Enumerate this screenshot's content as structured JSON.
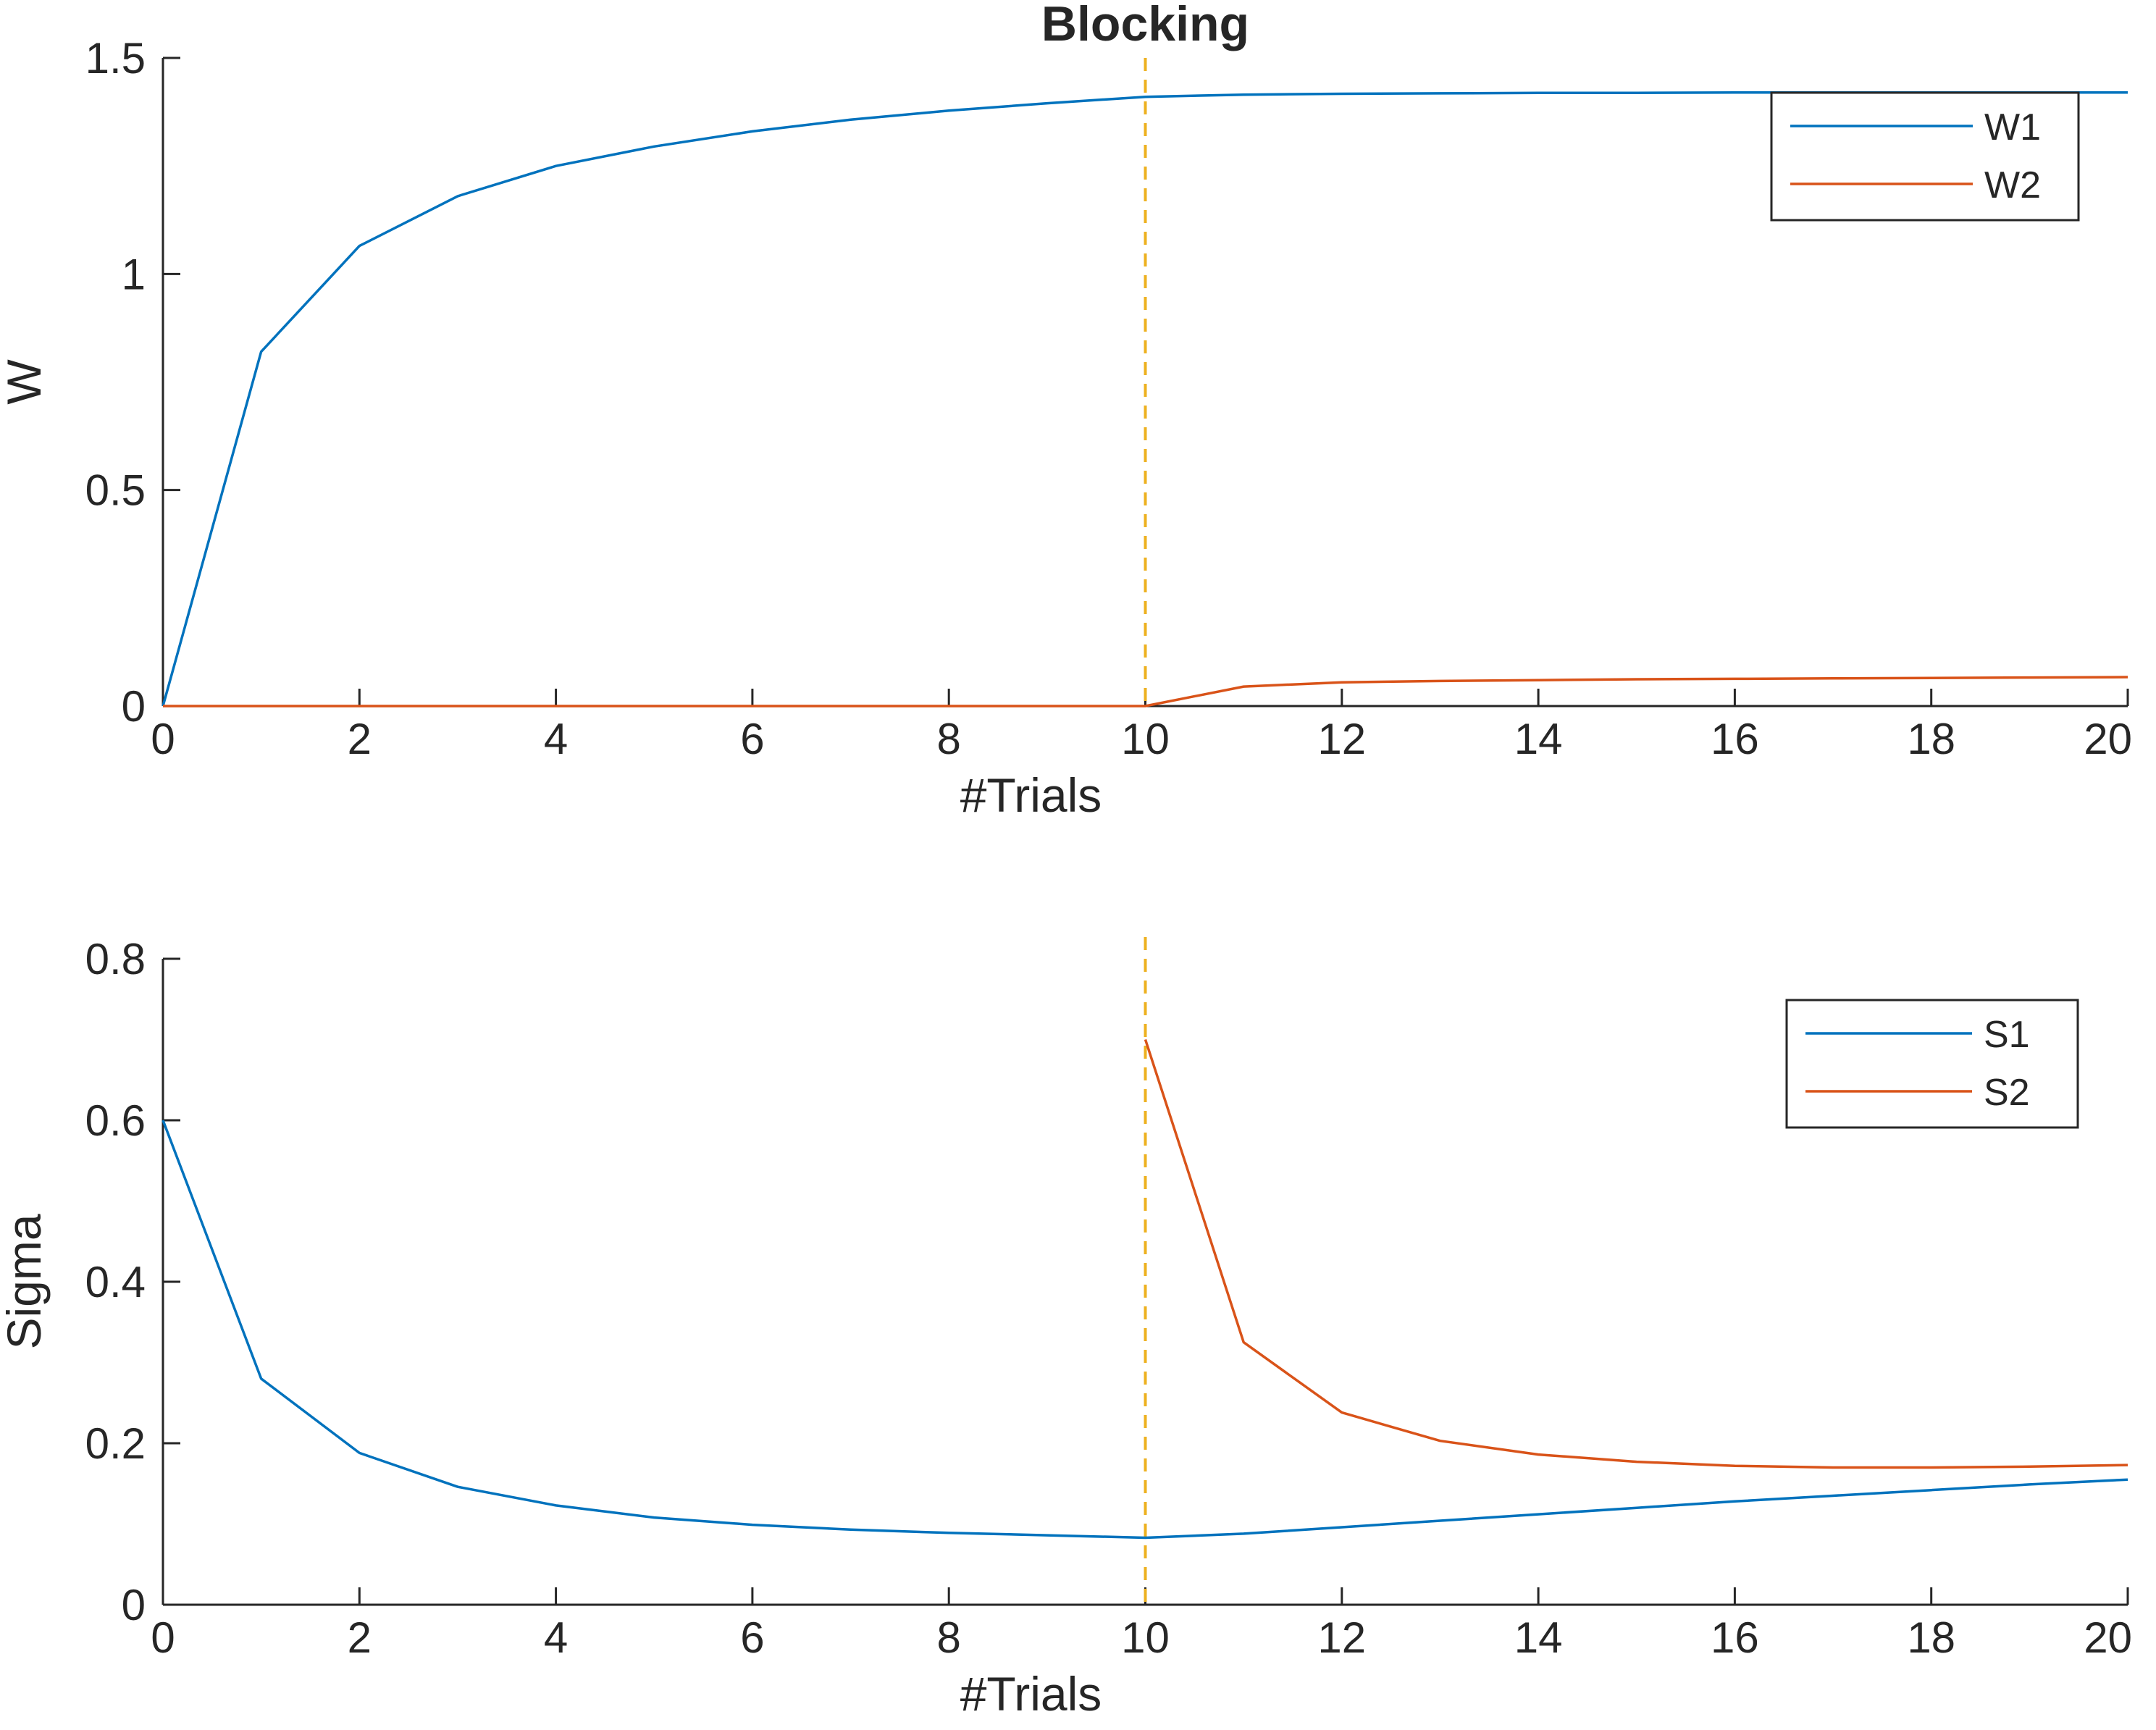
{
  "title": "Blocking",
  "colors": {
    "series1": "#0072BD",
    "series2": "#D95319",
    "marker_line": "#EDB120",
    "axis": "#262626"
  },
  "chart_data": [
    {
      "type": "line",
      "title": "Blocking",
      "xlabel": "#Trials",
      "ylabel": "W",
      "xlim": [
        0,
        20
      ],
      "ylim": [
        0,
        1.5
      ],
      "xticks": [
        "0",
        "2",
        "4",
        "6",
        "8",
        "10",
        "12",
        "14",
        "16",
        "18",
        "20"
      ],
      "yticks": [
        "0",
        "0.5",
        "1",
        "1.5"
      ],
      "grid": false,
      "legend_position": "top-right",
      "vline": {
        "x": 10,
        "style": "dashed"
      },
      "series": [
        {
          "name": "W1",
          "x": [
            0,
            1,
            2,
            3,
            4,
            5,
            6,
            7,
            8,
            9,
            10,
            11,
            12,
            13,
            14,
            15,
            16,
            17,
            18,
            19,
            20
          ],
          "y": [
            0,
            0.82,
            1.065,
            1.18,
            1.25,
            1.295,
            1.33,
            1.357,
            1.378,
            1.395,
            1.41,
            1.415,
            1.417,
            1.418,
            1.419,
            1.419,
            1.42,
            1.42,
            1.42,
            1.42,
            1.42
          ]
        },
        {
          "name": "W2",
          "x": [
            0,
            1,
            2,
            3,
            4,
            5,
            6,
            7,
            8,
            9,
            10,
            11,
            12,
            13,
            14,
            15,
            16,
            17,
            18,
            19,
            20
          ],
          "y": [
            0,
            0,
            0,
            0,
            0,
            0,
            0,
            0,
            0,
            0,
            0,
            0.045,
            0.055,
            0.058,
            0.06,
            0.062,
            0.063,
            0.064,
            0.065,
            0.066,
            0.067
          ]
        }
      ]
    },
    {
      "type": "line",
      "title": "",
      "xlabel": "#Trials",
      "ylabel": "Sigma",
      "xlim": [
        0,
        20
      ],
      "ylim": [
        0,
        0.8
      ],
      "xticks": [
        "0",
        "2",
        "4",
        "6",
        "8",
        "10",
        "12",
        "14",
        "16",
        "18",
        "20"
      ],
      "yticks": [
        "0",
        "0.2",
        "0.4",
        "0.6",
        "0.8"
      ],
      "grid": false,
      "legend_position": "top-right",
      "vline": {
        "x": 10,
        "style": "dashed"
      },
      "series": [
        {
          "name": "S1",
          "x": [
            0,
            1,
            2,
            3,
            4,
            5,
            6,
            7,
            8,
            9,
            10,
            11,
            12,
            13,
            14,
            15,
            16,
            17,
            18,
            19,
            20
          ],
          "y": [
            0.6,
            0.28,
            0.188,
            0.146,
            0.123,
            0.108,
            0.099,
            0.093,
            0.089,
            0.086,
            0.083,
            0.088,
            0.096,
            0.104,
            0.112,
            0.12,
            0.128,
            0.135,
            0.142,
            0.149,
            0.155
          ]
        },
        {
          "name": "S2",
          "x": [
            10,
            11,
            12,
            13,
            14,
            15,
            16,
            17,
            18,
            19,
            20
          ],
          "y": [
            0.7,
            0.325,
            0.238,
            0.203,
            0.186,
            0.177,
            0.172,
            0.17,
            0.17,
            0.171,
            0.173
          ]
        }
      ]
    }
  ]
}
